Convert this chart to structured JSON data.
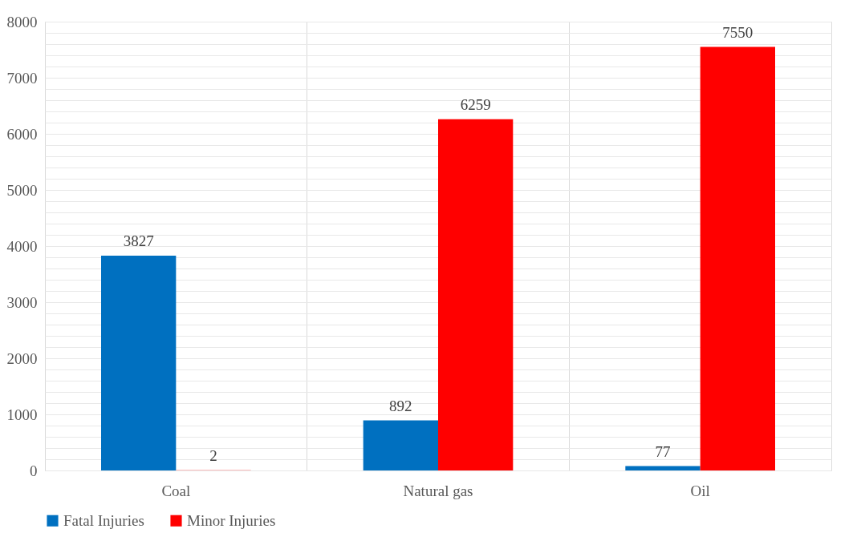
{
  "chart_data": {
    "type": "bar",
    "categories": [
      "Coal",
      "Natural gas",
      "Oil"
    ],
    "series": [
      {
        "name": "Fatal Injuries",
        "color": "#0070c0",
        "values": [
          3827,
          892,
          77
        ]
      },
      {
        "name": "Minor Injuries",
        "color": "#ff0000",
        "values": [
          2,
          6259,
          7550
        ]
      }
    ],
    "ylim": [
      0,
      8000
    ],
    "yticks": [
      0,
      {
        "value": 200,
        "label": null
      },
      {
        "value": 400,
        "label": null
      },
      {
        "value": 600,
        "label": null
      },
      {
        "value": 800,
        "label": null
      },
      1000,
      {
        "value": 1200,
        "label": null
      },
      {
        "value": 1400,
        "label": null
      },
      {
        "value": 1600,
        "label": null
      },
      {
        "value": 1800,
        "label": null
      },
      2000,
      {
        "value": 2200,
        "label": null
      },
      {
        "value": 2400,
        "label": null
      },
      {
        "value": 2600,
        "label": null
      },
      {
        "value": 2800,
        "label": null
      },
      3000,
      {
        "value": 3200,
        "label": null
      },
      {
        "value": 3400,
        "label": null
      },
      {
        "value": 3600,
        "label": null
      },
      {
        "value": 3800,
        "label": null
      },
      4000,
      {
        "value": 4200,
        "label": null
      },
      {
        "value": 4400,
        "label": null
      },
      {
        "value": 4600,
        "label": null
      },
      {
        "value": 4800,
        "label": null
      },
      5000,
      {
        "value": 5200,
        "label": null
      },
      {
        "value": 5400,
        "label": null
      },
      {
        "value": 5600,
        "label": null
      },
      {
        "value": 5800,
        "label": null
      },
      6000,
      {
        "value": 6200,
        "label": null
      },
      {
        "value": 6400,
        "label": null
      },
      {
        "value": 6600,
        "label": null
      },
      {
        "value": 6800,
        "label": null
      },
      7000,
      {
        "value": 7200,
        "label": null
      },
      {
        "value": 7400,
        "label": null
      },
      {
        "value": 7600,
        "label": null
      },
      {
        "value": 7800,
        "label": null
      },
      8000
    ],
    "grid": true,
    "legend": "bottom",
    "data_labels": true
  }
}
